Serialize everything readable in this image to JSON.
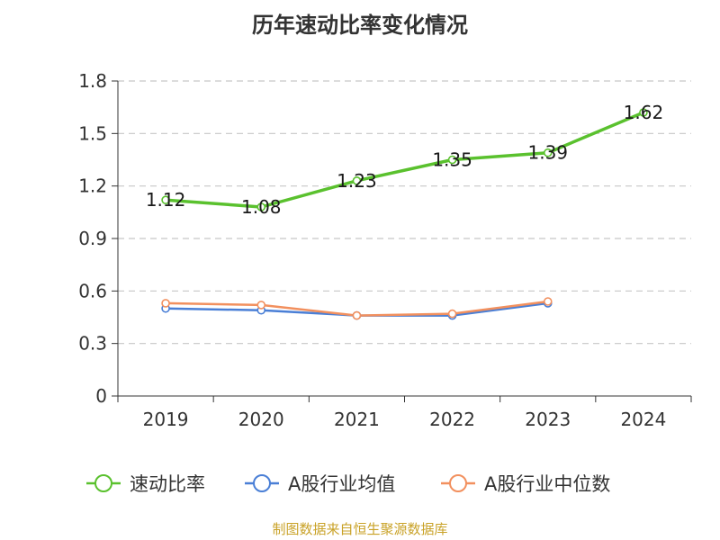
{
  "chart_data": {
    "type": "line",
    "title": "历年速动比率变化情况",
    "categories": [
      "2019",
      "2020",
      "2021",
      "2022",
      "2023",
      "2024"
    ],
    "yticks": [
      "0",
      "0.3",
      "0.6",
      "0.9",
      "1.2",
      "1.5",
      "1.8"
    ],
    "ylim": [
      0,
      1.8
    ],
    "grid": true,
    "legend_position": "bottom",
    "series": [
      {
        "name": "速动比率",
        "color": "#5ac12e",
        "values": [
          1.12,
          1.08,
          1.23,
          1.35,
          1.39,
          1.62
        ],
        "labels": [
          "1.12",
          "1.08",
          "1.23",
          "1.35",
          "1.39",
          "1.62"
        ]
      },
      {
        "name": "A股行业均值",
        "color": "#4a7fd6",
        "values": [
          0.5,
          0.49,
          0.46,
          0.46,
          0.53,
          null
        ]
      },
      {
        "name": "A股行业中位数",
        "color": "#f2905e",
        "values": [
          0.53,
          0.52,
          0.46,
          0.47,
          0.54,
          null
        ]
      }
    ],
    "source": "制图数据来自恒生聚源数据库"
  }
}
